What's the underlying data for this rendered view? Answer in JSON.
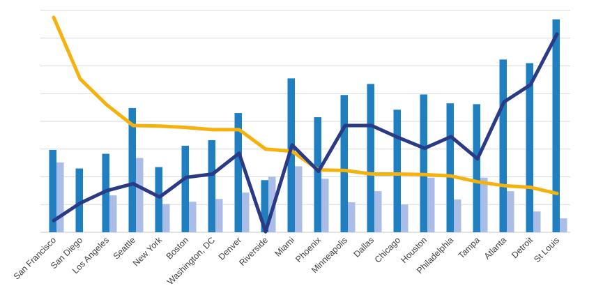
{
  "chart_data": {
    "type": "bar",
    "categories": [
      "San Francisco",
      "San Diego",
      "Los Angeles",
      "Seattle",
      "New York",
      "Boston",
      "Washington, DC",
      "Denver",
      "Riverside",
      "Miami",
      "Phoenix",
      "Minneapolis",
      "Dallas",
      "Chicago",
      "Houston",
      "Philadelphia",
      "Tampa",
      "Atlanta",
      "Detroit",
      "St Louis"
    ],
    "ylim": [
      0,
      8
    ],
    "grid": true,
    "legend": "none",
    "series": [
      {
        "kind": "bar",
        "color": "#1f7fc1",
        "values": [
          2.97,
          2.3,
          2.83,
          4.48,
          2.35,
          3.12,
          3.32,
          4.3,
          1.88,
          5.55,
          4.15,
          4.95,
          5.35,
          4.42,
          4.97,
          4.65,
          4.62,
          6.23,
          6.1,
          7.68
        ]
      },
      {
        "kind": "bar",
        "color": "#a9bde6",
        "values": [
          2.52,
          0.0,
          1.33,
          2.68,
          1.02,
          1.1,
          1.2,
          1.43,
          2.0,
          2.38,
          1.93,
          1.08,
          1.48,
          1.0,
          1.97,
          1.18,
          1.97,
          1.48,
          0.75,
          0.5
        ]
      },
      {
        "kind": "line",
        "color": "#f5b20f",
        "values": [
          7.75,
          5.53,
          4.6,
          3.85,
          3.83,
          3.78,
          3.7,
          3.7,
          3.0,
          2.92,
          2.25,
          2.23,
          2.1,
          2.1,
          2.08,
          2.03,
          1.82,
          1.68,
          1.62,
          1.4
        ]
      },
      {
        "kind": "line",
        "color": "#2b3a84",
        "values": [
          0.42,
          1.05,
          1.5,
          1.75,
          1.27,
          1.98,
          2.1,
          2.85,
          0.02,
          3.15,
          2.2,
          3.85,
          3.85,
          3.42,
          3.03,
          3.45,
          2.65,
          4.7,
          5.32,
          7.15
        ]
      }
    ]
  }
}
